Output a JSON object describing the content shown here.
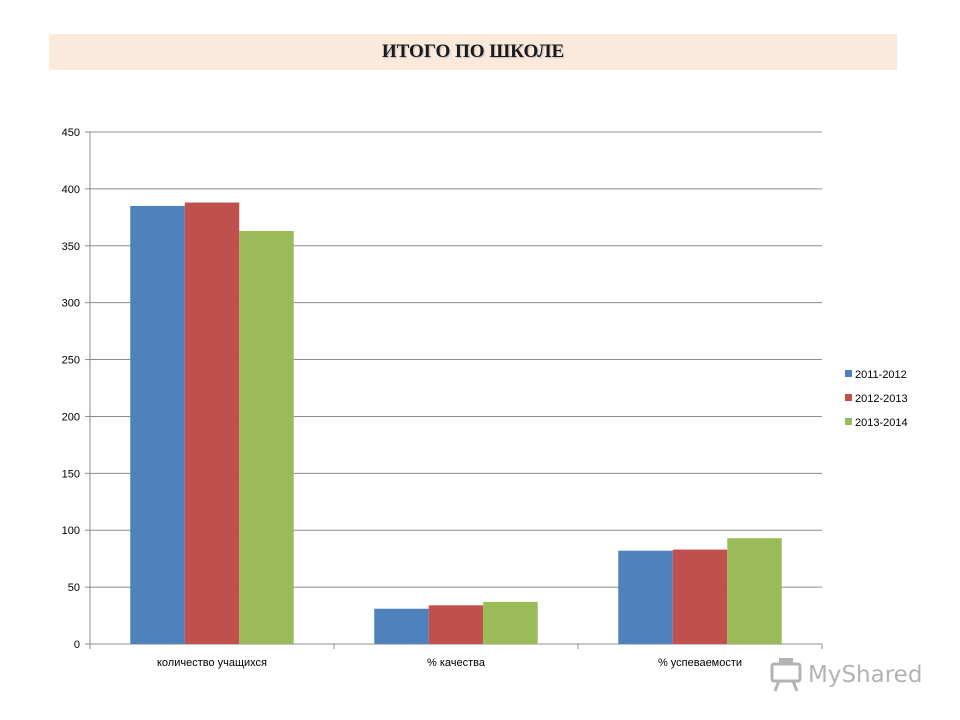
{
  "header": {
    "title": "ИТОГО ПО ШКОЛЕ"
  },
  "chart_data": {
    "type": "bar",
    "title": "ИТОГО ПО ШКОЛЕ",
    "categories": [
      "количество учащихся",
      "% качества",
      "% успеваемости"
    ],
    "series": [
      {
        "name": "2011-2012",
        "color": "#4f81bd",
        "values": [
          385,
          31,
          82
        ]
      },
      {
        "name": "2012-2013",
        "color": "#c0504d",
        "values": [
          388,
          34,
          83
        ]
      },
      {
        "name": "2013-2014",
        "color": "#9bbb59",
        "values": [
          363,
          37,
          93
        ]
      }
    ],
    "ylim": [
      0,
      450
    ],
    "yticks": [
      0,
      50,
      100,
      150,
      200,
      250,
      300,
      350,
      400,
      450
    ],
    "grid": true,
    "legend": "right",
    "xlabel": "",
    "ylabel": ""
  },
  "watermark": {
    "text": "MyShared"
  }
}
